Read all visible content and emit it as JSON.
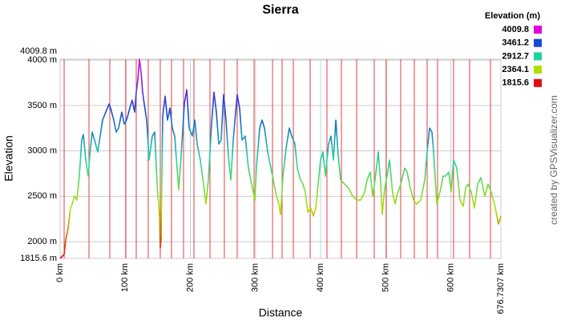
{
  "chart_data": {
    "type": "line",
    "title": "Sierra",
    "x_label": "Distance",
    "y_label": "Elevation",
    "credit": "created by GPSVisualizer.com",
    "legend_title": "Elevation (m)",
    "color_scale": [
      {
        "value": 4009.8,
        "color": "#e000e0"
      },
      {
        "value": 3461.2,
        "color": "#1848d8"
      },
      {
        "value": 2912.7,
        "color": "#20d0a0"
      },
      {
        "value": 2364.1,
        "color": "#b0e000"
      },
      {
        "value": 1815.6,
        "color": "#e01010"
      }
    ],
    "xlim": [
      0,
      676.7307
    ],
    "ylim": [
      1815.6,
      4009.8
    ],
    "xticks": [
      {
        "value": 0,
        "label": "0 km"
      },
      {
        "value": 100,
        "label": "100 km"
      },
      {
        "value": 200,
        "label": "200 km"
      },
      {
        "value": 300,
        "label": "300 km"
      },
      {
        "value": 400,
        "label": "400 km"
      },
      {
        "value": 500,
        "label": "500 km"
      },
      {
        "value": 600,
        "label": "600 km"
      },
      {
        "value": 676.7307,
        "label": "676.7307 km"
      }
    ],
    "yticks": [
      {
        "value": 1815.6,
        "label": "1815.6 m"
      },
      {
        "value": 2000,
        "label": "2000 m"
      },
      {
        "value": 2500,
        "label": "2500 m"
      },
      {
        "value": 3000,
        "label": "3000 m"
      },
      {
        "value": 3500,
        "label": "3500 m"
      },
      {
        "value": 4000,
        "label": "4000 m"
      },
      {
        "value": 4009.8,
        "label": "4009.8 m"
      }
    ],
    "grid": true,
    "waypoints_x": [
      6.2,
      44.3,
      76.3,
      100.9,
      116.9,
      135.3,
      153.8,
      171.0,
      189.5,
      205.5,
      230.1,
      252.2,
      271.9,
      297.8,
      326.1,
      340.8,
      358.1,
      383.9,
      409.7,
      431.9,
      455.3,
      482.3,
      500.8,
      522.9,
      543.8,
      563.5,
      579.5,
      604.1,
      628.7,
      660.7
    ],
    "waypoint_color": "#e04040",
    "x": [
      0,
      6.2,
      8.6,
      12.3,
      16.0,
      18.5,
      22.1,
      25.8,
      29.5,
      33.2,
      35.7,
      39.4,
      43.1,
      45.5,
      49.2,
      52.9,
      57.8,
      61.5,
      65.2,
      70.1,
      75.1,
      77.5,
      82.4,
      86.1,
      89.8,
      94.7,
      98.4,
      102.1,
      107.0,
      110.7,
      114.4,
      116.9,
      119.3,
      121.8,
      124.3,
      126.7,
      129.2,
      132.9,
      136.6,
      141.5,
      145.2,
      148.9,
      152.6,
      153.8,
      155.0,
      157.5,
      161.2,
      164.9,
      168.6,
      172.3,
      175.9,
      179.6,
      182.1,
      185.8,
      190.7,
      194.4,
      198.1,
      203.0,
      206.7,
      210.4,
      215.3,
      220.2,
      223.9,
      227.6,
      232.5,
      236.2,
      239.9,
      243.6,
      247.3,
      251.0,
      254.7,
      258.4,
      262.1,
      265.8,
      271.9,
      275.6,
      279.3,
      284.2,
      289.1,
      295.3,
      299.0,
      301.4,
      306.4,
      310.1,
      313.8,
      318.7,
      323.6,
      328.5,
      332.2,
      335.9,
      338.4,
      342.1,
      347.0,
      351.9,
      355.6,
      360.5,
      364.2,
      369.1,
      372.8,
      376.5,
      380.2,
      385.1,
      388.8,
      392.5,
      397.4,
      399.9,
      403.6,
      407.3,
      412.2,
      415.9,
      419.6,
      423.3,
      427.0,
      430.6,
      436.8,
      442.9,
      449.1,
      455.2,
      461.4,
      467.6,
      471.2,
      476.2,
      479.9,
      483.5,
      488.5,
      492.2,
      494.6,
      498.3,
      502.0,
      505.7,
      510.6,
      514.3,
      516.8,
      522.9,
      529.1,
      532.8,
      537.7,
      542.6,
      547.5,
      553.7,
      559.8,
      563.5,
      567.2,
      570.9,
      573.4,
      578.3,
      583.2,
      588.1,
      591.8,
      596.7,
      600.4,
      604.1,
      609.0,
      613.9,
      618.9,
      622.6,
      626.3,
      631.2,
      636.1,
      641.0,
      646.0,
      652.1,
      657.0,
      661.9,
      666.9,
      670.6,
      673.0,
      676.7
    ],
    "values": [
      1815.6,
      1859,
      2018,
      2150,
      2370,
      2414,
      2502,
      2458,
      2722,
      3119,
      3181,
      2899,
      2722,
      2943,
      3207,
      3119,
      2987,
      3163,
      3339,
      3427,
      3515,
      3471,
      3339,
      3207,
      3251,
      3427,
      3295,
      3339,
      3471,
      3559,
      3427,
      3647,
      3780,
      4009.8,
      3868,
      3647,
      3515,
      3339,
      2899,
      3163,
      3207,
      2634,
      2282,
      1930,
      2018,
      3383,
      3603,
      3339,
      3471,
      3251,
      3163,
      2810,
      2573,
      2943,
      3515,
      3674,
      3251,
      3163,
      3339,
      3075,
      2899,
      2634,
      2414,
      2678,
      3295,
      3647,
      3427,
      3075,
      3119,
      3621,
      3339,
      2943,
      2678,
      3119,
      3621,
      3471,
      3119,
      3163,
      2810,
      2590,
      2458,
      2810,
      3251,
      3339,
      3251,
      2987,
      2810,
      2634,
      2502,
      2414,
      2300,
      2722,
      3031,
      3251,
      3163,
      3075,
      2810,
      2678,
      2634,
      2546,
      2326,
      2370,
      2282,
      2370,
      2722,
      2899,
      2987,
      2722,
      3075,
      3163,
      2899,
      3339,
      2943,
      2678,
      2634,
      2590,
      2502,
      2458,
      2458,
      2546,
      2678,
      2766,
      2502,
      2678,
      2987,
      2634,
      2300,
      2590,
      2722,
      2899,
      2529,
      2414,
      2502,
      2634,
      2810,
      2766,
      2590,
      2458,
      2414,
      2458,
      2678,
      2987,
      3251,
      3207,
      2987,
      2414,
      2546,
      2722,
      2722,
      2766,
      2546,
      2899,
      2810,
      2458,
      2388,
      2590,
      2634,
      2546,
      2370,
      2634,
      2705,
      2502,
      2634,
      2546,
      2414,
      2282,
      2194,
      2282
    ]
  }
}
